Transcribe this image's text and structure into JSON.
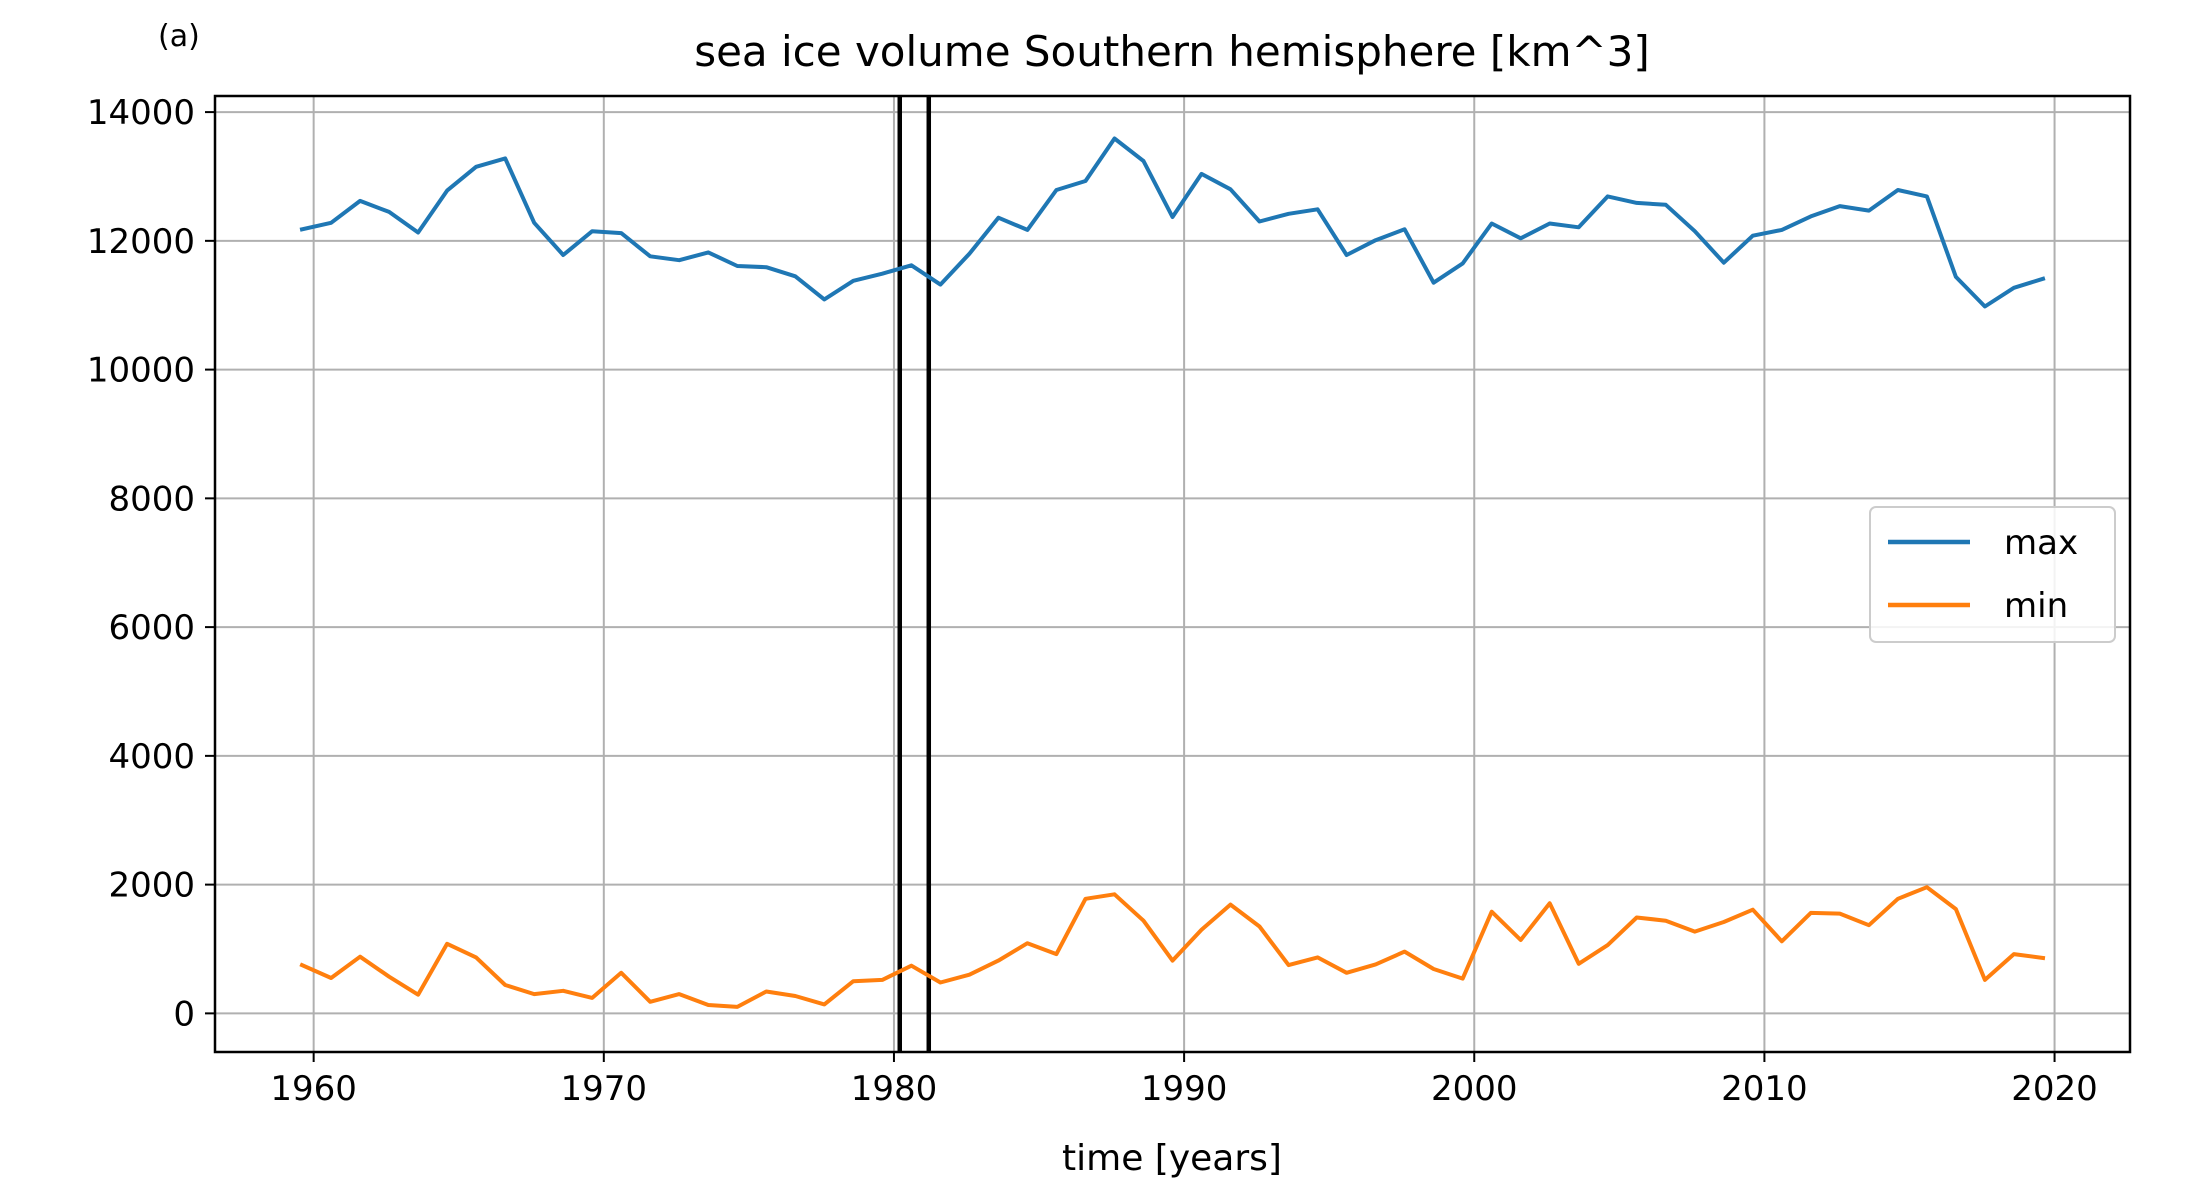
{
  "panel_label": "(a)",
  "chart_data": {
    "type": "line",
    "title": "sea ice volume Southern hemisphere [km^3]",
    "xlabel": "time [years]",
    "ylabel": "",
    "xlim": [
      1956.6,
      2022.6
    ],
    "ylim": [
      -600,
      14250
    ],
    "xticks": [
      1960,
      1970,
      1980,
      1990,
      2000,
      2010,
      2020
    ],
    "yticks": [
      0,
      2000,
      4000,
      6000,
      8000,
      10000,
      12000,
      14000
    ],
    "grid": true,
    "legend_position": "center-right",
    "vertical_lines": [
      1980.2,
      1981.2
    ],
    "x": [
      1959.6,
      1960.6,
      1961.6,
      1962.6,
      1963.6,
      1964.6,
      1965.6,
      1966.6,
      1967.6,
      1968.6,
      1969.6,
      1970.6,
      1971.6,
      1972.6,
      1973.6,
      1974.6,
      1975.6,
      1976.6,
      1977.6,
      1978.6,
      1979.6,
      1980.6,
      1981.6,
      1982.6,
      1983.6,
      1984.6,
      1985.6,
      1986.6,
      1987.6,
      1988.6,
      1989.6,
      1990.6,
      1991.6,
      1992.6,
      1993.6,
      1994.6,
      1995.6,
      1996.6,
      1997.6,
      1998.6,
      1999.6,
      2000.6,
      2001.6,
      2002.6,
      2003.6,
      2004.6,
      2005.6,
      2006.6,
      2007.6,
      2008.6,
      2009.6,
      2010.6,
      2011.6,
      2012.6,
      2013.6,
      2014.6,
      2015.6,
      2016.6,
      2017.6,
      2018.6,
      2019.6
    ],
    "series": [
      {
        "name": "max",
        "color": "#1f77b4",
        "values": [
          12180,
          12280,
          12620,
          12450,
          12130,
          12780,
          13150,
          13280,
          12280,
          11780,
          12150,
          12120,
          11760,
          11700,
          11820,
          11610,
          11590,
          11450,
          11090,
          11380,
          11490,
          11620,
          11320,
          11800,
          12360,
          12170,
          12790,
          12930,
          13590,
          13240,
          12370,
          13040,
          12800,
          12300,
          12420,
          12490,
          11780,
          12010,
          12180,
          11350,
          11650,
          12270,
          12040,
          12270,
          12210,
          12690,
          12590,
          12560,
          12150,
          11660,
          12080,
          12170,
          12380,
          12540,
          12470,
          12790,
          12690,
          11440,
          10980,
          11270,
          11410
        ]
      },
      {
        "name": "min",
        "color": "#ff7f0e",
        "values": [
          750,
          550,
          880,
          570,
          290,
          1080,
          870,
          440,
          300,
          350,
          240,
          630,
          180,
          300,
          130,
          100,
          340,
          270,
          140,
          500,
          520,
          740,
          480,
          600,
          820,
          1090,
          920,
          1780,
          1850,
          1440,
          820,
          1300,
          1690,
          1350,
          750,
          870,
          630,
          760,
          960,
          690,
          540,
          1580,
          1140,
          1710,
          770,
          1060,
          1490,
          1440,
          1270,
          1420,
          1610,
          1120,
          1560,
          1550,
          1370,
          1780,
          1960,
          1620,
          520,
          920,
          860
        ]
      }
    ]
  }
}
